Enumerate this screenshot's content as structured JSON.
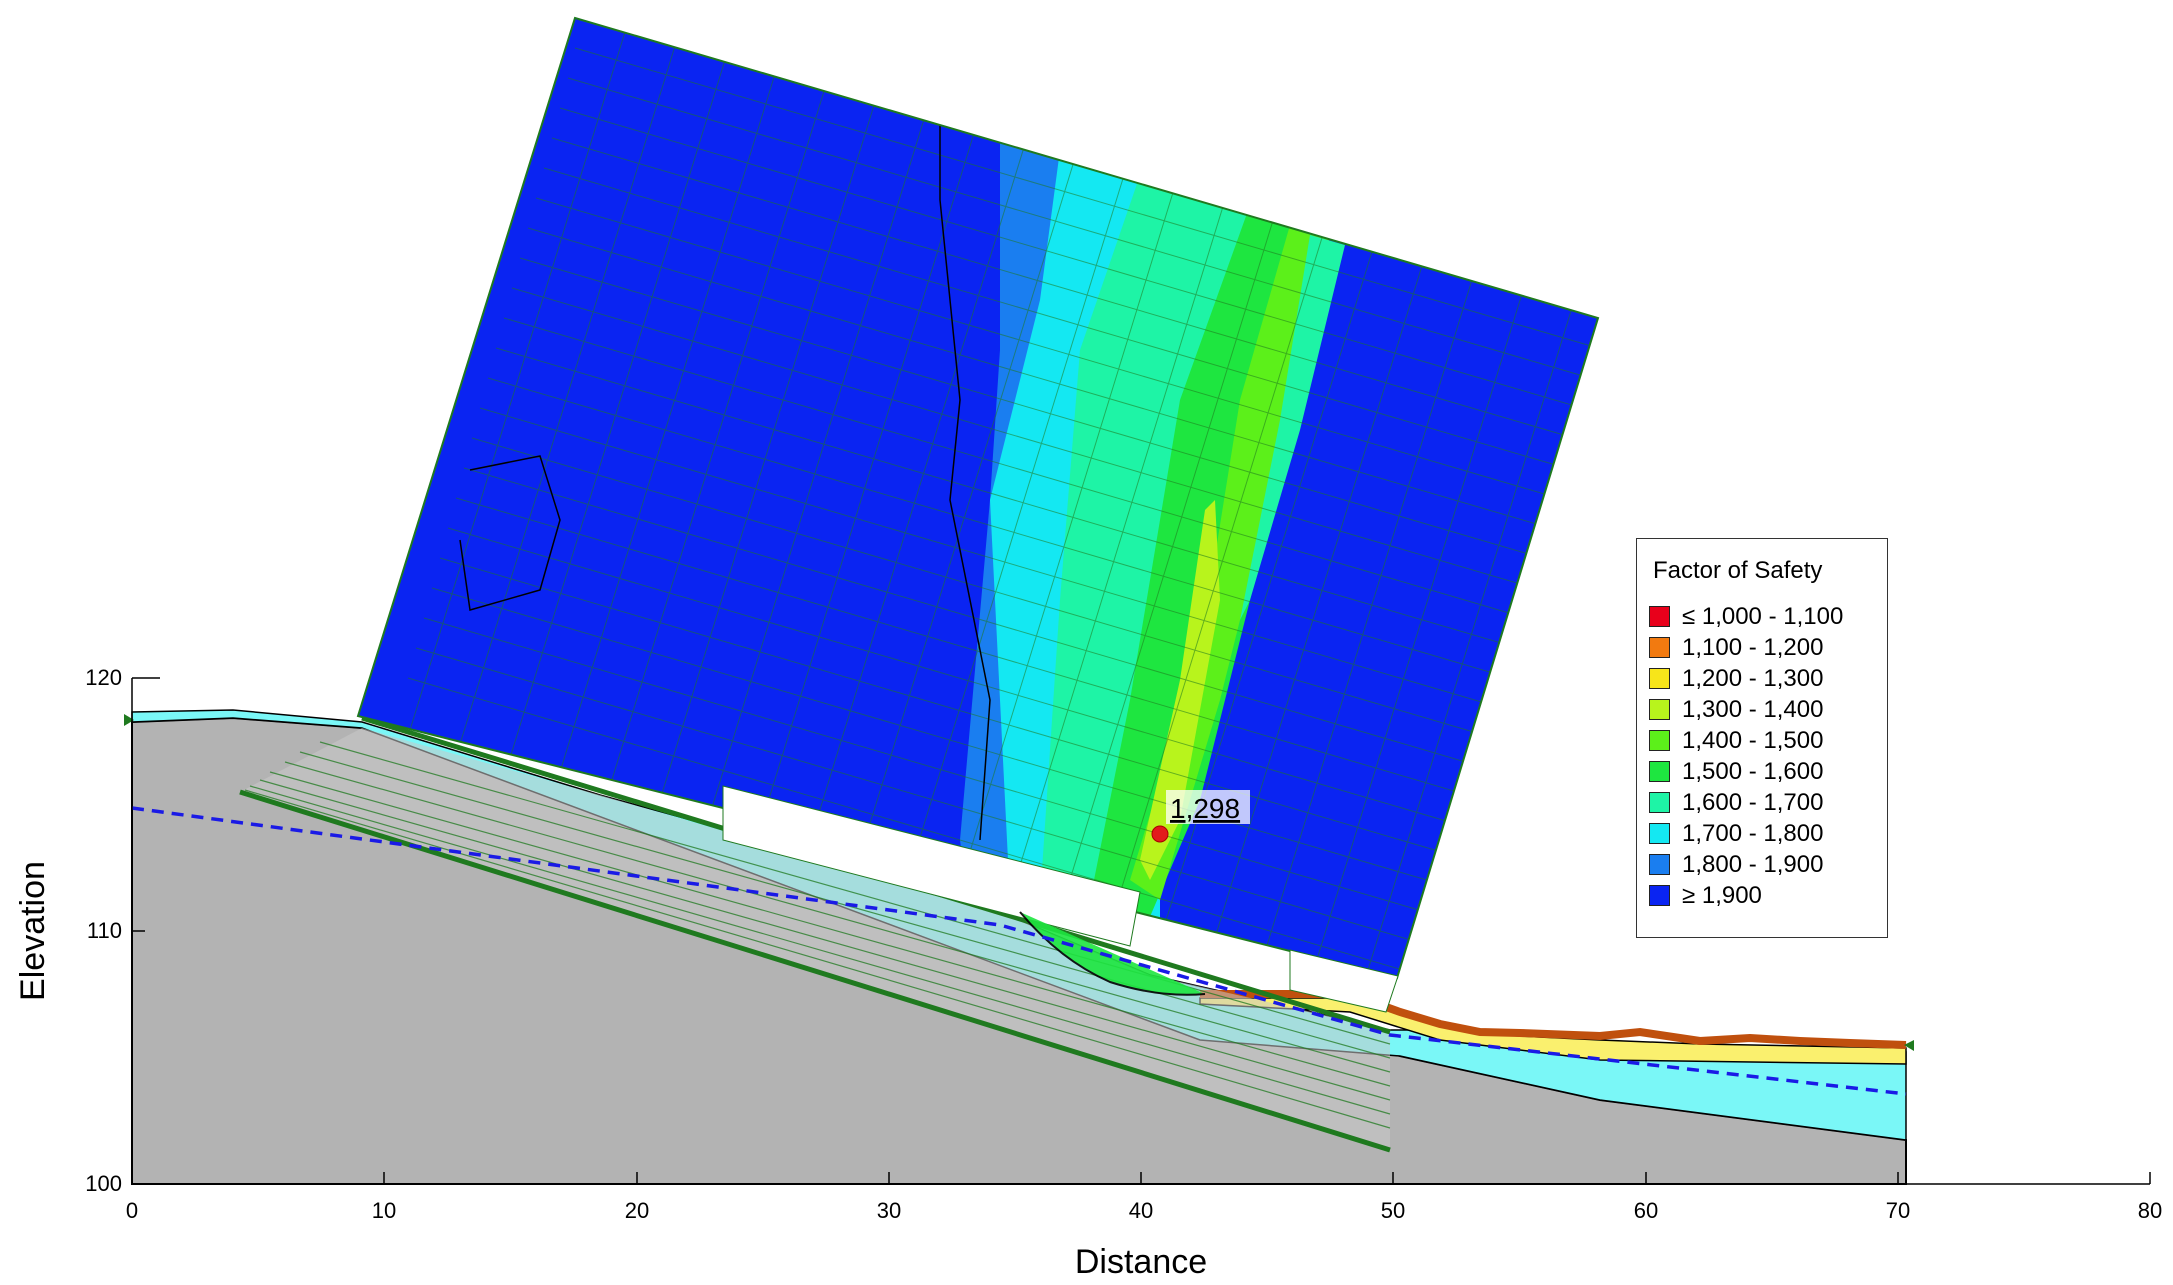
{
  "axes": {
    "x_label": "Distance",
    "y_label": "Elevation",
    "x_ticks": [
      "0",
      "10",
      "20",
      "30",
      "40",
      "50",
      "60",
      "70",
      "80"
    ],
    "y_ticks": [
      "100",
      "110",
      "120"
    ]
  },
  "critical_point": {
    "label": "1,298",
    "color": "#e31a1c"
  },
  "legend": {
    "title": "Factor of Safety",
    "items": [
      {
        "label": "≤ 1,000 - 1,100",
        "color": "#e8001b"
      },
      {
        "label": "1,100 - 1,200",
        "color": "#f27a10"
      },
      {
        "label": "1,200 - 1,300",
        "color": "#f7e51a"
      },
      {
        "label": "1,300 - 1,400",
        "color": "#b8f41c"
      },
      {
        "label": "1,400 - 1,500",
        "color": "#5cf01a"
      },
      {
        "label": "1,500 - 1,600",
        "color": "#1ee640"
      },
      {
        "label": "1,600 - 1,700",
        "color": "#1ef4a6"
      },
      {
        "label": "1,700 - 1,800",
        "color": "#14e8f2"
      },
      {
        "label": "1,800 - 1,900",
        "color": "#1a7ef0"
      },
      {
        "label": "≥ 1,900",
        "color": "#0a24f2"
      }
    ]
  },
  "colors": {
    "ground": "#b3b3b3",
    "cyan_layer": "#7af7f7",
    "yellow_layer": "#faf06e",
    "orange_layer": "#c0500e",
    "water_table": "#1a1ae6",
    "reinforcement": "#1f7a1f",
    "grid_blue": "#0a24f2"
  }
}
